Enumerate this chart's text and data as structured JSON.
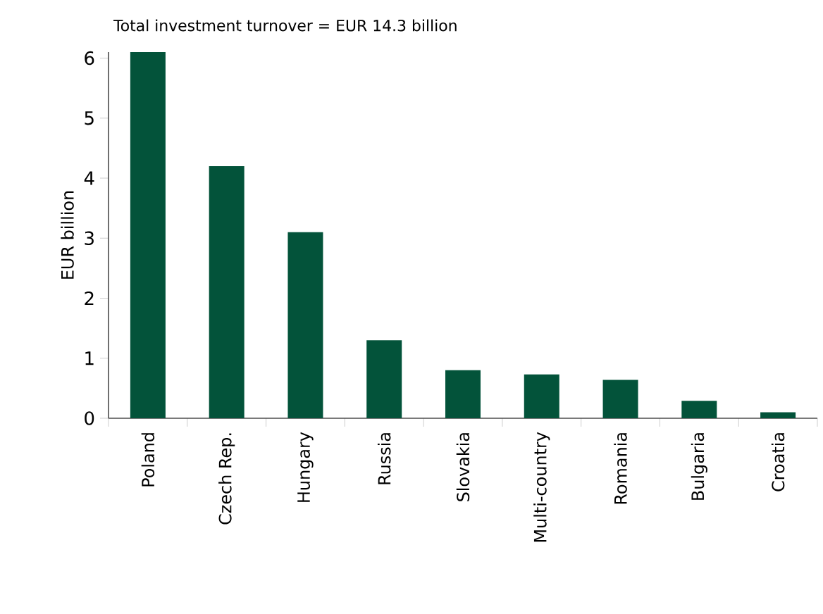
{
  "chart_data": {
    "type": "bar",
    "title": "Total investment turnover = EUR 14.3 billion",
    "ylabel": "EUR billion",
    "categories": [
      "Poland",
      "Czech Rep.",
      "Hungary",
      "Russia",
      "Slovakia",
      "Multi-country",
      "Romania",
      "Bulgaria",
      "Croatia"
    ],
    "values": [
      6.1,
      4.2,
      3.1,
      1.3,
      0.8,
      0.73,
      0.64,
      0.29,
      0.1
    ],
    "color": "#03533a",
    "ylim": [
      0,
      6.1
    ],
    "yticks": [
      0,
      1,
      2,
      3,
      4,
      5,
      6
    ]
  }
}
